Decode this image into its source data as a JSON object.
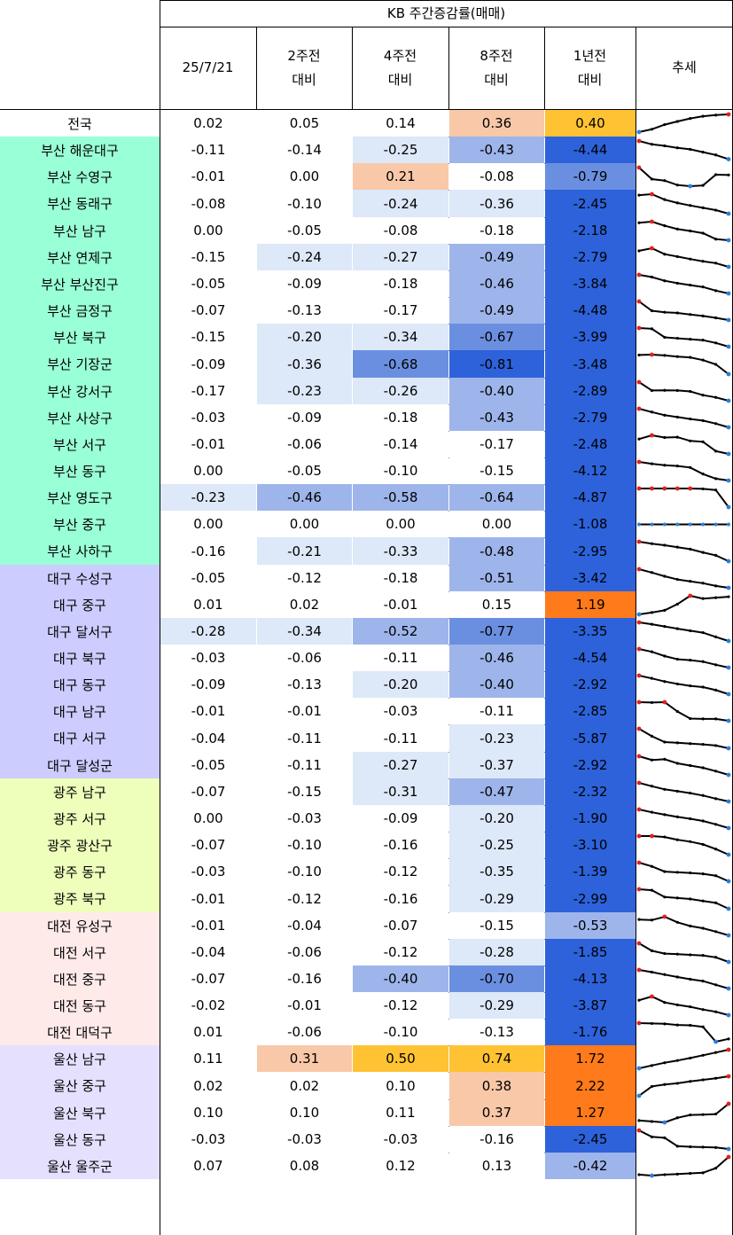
{
  "header": {
    "title": "KB 주간증감률(매매)",
    "col_date": "25/7/21",
    "col_2w": [
      "2주전",
      "대비"
    ],
    "col_4w": [
      "4주전",
      "대비"
    ],
    "col_8w": [
      "8주전",
      "대비"
    ],
    "col_1y": [
      "1년전",
      "대비"
    ],
    "col_trend": "추세"
  },
  "colors": {
    "national": "#ffffff",
    "busan": "#99ffd6",
    "daegu": "#ccccff",
    "gwangju": "#eeffbb",
    "daejeon": "#ffeaea",
    "ulsan": "#e6e0ff",
    "dark_blue": "#2d62da",
    "mid_blue": "#6b8fe0",
    "light_blue": "#9eb5eb",
    "pale_blue": "#dde8f8",
    "peach": "#f8c8a8",
    "gold": "#ffc233",
    "orange": "#ff7a1a",
    "spark_line": "#000000",
    "spark_high": "#e02020",
    "spark_low": "#2c7fd9"
  },
  "rows": [
    {
      "region": "전국",
      "group": "national",
      "values": [
        "0.02",
        "0.05",
        "0.14",
        "0.36",
        "0.40"
      ],
      "fills": [
        "",
        "",
        "",
        "peach",
        "gold"
      ],
      "trend": [
        0.05,
        0.2,
        0.45,
        0.62,
        0.78,
        0.9,
        0.96,
        1
      ]
    },
    {
      "region": "부산 해운대구",
      "group": "busan",
      "values": [
        "-0.11",
        "-0.14",
        "-0.25",
        "-0.43",
        "-4.44"
      ],
      "fills": [
        "",
        "",
        "pale_blue",
        "light_blue",
        "dark_blue"
      ],
      "trend": [
        1,
        0.82,
        0.74,
        0.63,
        0.55,
        0.4,
        0.25,
        0.02
      ]
    },
    {
      "region": "부산 수영구",
      "group": "busan",
      "values": [
        "-0.01",
        "0.00",
        "0.21",
        "-0.08",
        "-0.79"
      ],
      "fills": [
        "",
        "",
        "peach",
        "",
        "mid_blue"
      ],
      "trend": [
        1,
        0.38,
        0.3,
        0.06,
        0,
        0.04,
        0.62,
        0.6
      ]
    },
    {
      "region": "부산 동래구",
      "group": "busan",
      "values": [
        "-0.08",
        "-0.10",
        "-0.24",
        "-0.36",
        "-2.45"
      ],
      "fills": [
        "",
        "",
        "pale_blue",
        "pale_blue",
        "dark_blue"
      ],
      "trend": [
        0.95,
        1,
        0.72,
        0.55,
        0.42,
        0.3,
        0.18,
        0
      ]
    },
    {
      "region": "부산 남구",
      "group": "busan",
      "values": [
        "0.00",
        "-0.05",
        "-0.08",
        "-0.18",
        "-2.18"
      ],
      "fills": [
        "",
        "",
        "",
        "",
        "dark_blue"
      ],
      "trend": [
        0.94,
        1,
        0.78,
        0.6,
        0.5,
        0.38,
        0.06,
        0
      ]
    },
    {
      "region": "부산 연제구",
      "group": "busan",
      "values": [
        "-0.15",
        "-0.24",
        "-0.27",
        "-0.49",
        "-2.79"
      ],
      "fills": [
        "",
        "pale_blue",
        "pale_blue",
        "light_blue",
        "dark_blue"
      ],
      "trend": [
        0.86,
        1,
        0.68,
        0.55,
        0.42,
        0.3,
        0.2,
        0
      ]
    },
    {
      "region": "부산 부산진구",
      "group": "busan",
      "values": [
        "-0.05",
        "-0.09",
        "-0.18",
        "-0.46",
        "-3.84"
      ],
      "fills": [
        "",
        "",
        "",
        "light_blue",
        "dark_blue"
      ],
      "trend": [
        1,
        0.88,
        0.68,
        0.55,
        0.45,
        0.35,
        0.15,
        0
      ]
    },
    {
      "region": "부산 금정구",
      "group": "busan",
      "values": [
        "-0.07",
        "-0.13",
        "-0.17",
        "-0.49",
        "-4.48"
      ],
      "fills": [
        "",
        "",
        "",
        "light_blue",
        "dark_blue"
      ],
      "trend": [
        1,
        0.5,
        0.42,
        0.38,
        0.3,
        0.22,
        0.12,
        0
      ]
    },
    {
      "region": "부산 북구",
      "group": "busan",
      "values": [
        "-0.15",
        "-0.20",
        "-0.34",
        "-0.67",
        "-3.99"
      ],
      "fills": [
        "",
        "pale_blue",
        "pale_blue",
        "mid_blue",
        "dark_blue"
      ],
      "trend": [
        1,
        0.96,
        0.5,
        0.45,
        0.4,
        0.35,
        0.2,
        0
      ]
    },
    {
      "region": "부산 기장군",
      "group": "busan",
      "values": [
        "-0.09",
        "-0.36",
        "-0.68",
        "-0.81",
        "-3.48"
      ],
      "fills": [
        "",
        "pale_blue",
        "mid_blue",
        "dark_blue",
        "dark_blue"
      ],
      "trend": [
        0.98,
        1,
        0.96,
        0.9,
        0.86,
        0.72,
        0.5,
        0
      ]
    },
    {
      "region": "부산 강서구",
      "group": "busan",
      "values": [
        "-0.17",
        "-0.23",
        "-0.26",
        "-0.40",
        "-2.89"
      ],
      "fills": [
        "",
        "pale_blue",
        "pale_blue",
        "light_blue",
        "dark_blue"
      ],
      "trend": [
        1,
        0.55,
        0.56,
        0.55,
        0.5,
        0.3,
        0.18,
        0
      ]
    },
    {
      "region": "부산 사상구",
      "group": "busan",
      "values": [
        "-0.03",
        "-0.09",
        "-0.18",
        "-0.43",
        "-2.79"
      ],
      "fills": [
        "",
        "",
        "",
        "light_blue",
        "dark_blue"
      ],
      "trend": [
        1,
        0.82,
        0.65,
        0.55,
        0.45,
        0.36,
        0.2,
        0
      ]
    },
    {
      "region": "부산 서구",
      "group": "busan",
      "values": [
        "-0.01",
        "-0.06",
        "-0.14",
        "-0.17",
        "-2.48"
      ],
      "fills": [
        "",
        "",
        "",
        "",
        "dark_blue"
      ],
      "trend": [
        0.8,
        1,
        0.88,
        0.9,
        0.7,
        0.65,
        0.15,
        0
      ]
    },
    {
      "region": "부산 동구",
      "group": "busan",
      "values": [
        "0.00",
        "-0.05",
        "-0.10",
        "-0.15",
        "-4.12"
      ],
      "fills": [
        "",
        "",
        "",
        "",
        "dark_blue"
      ],
      "trend": [
        1,
        0.9,
        0.82,
        0.78,
        0.7,
        0.35,
        0.1,
        0
      ]
    },
    {
      "region": "부산 영도구",
      "group": "busan",
      "values": [
        "-0.23",
        "-0.46",
        "-0.58",
        "-0.64",
        "-4.87"
      ],
      "fills": [
        "pale_blue",
        "light_blue",
        "light_blue",
        "light_blue",
        "dark_blue"
      ],
      "trend": [
        1,
        1,
        1,
        1,
        1,
        0.98,
        0.92,
        0
      ]
    },
    {
      "region": "부산 중구",
      "group": "busan",
      "values": [
        "0.00",
        "0.00",
        "0.00",
        "0.00",
        "-1.08"
      ],
      "fills": [
        "",
        "",
        "",
        "",
        "dark_blue"
      ],
      "trend": [
        0.5,
        0.5,
        0.5,
        0.5,
        0.5,
        0.5,
        0.5,
        0.5
      ]
    },
    {
      "region": "부산 사하구",
      "group": "busan",
      "values": [
        "-0.16",
        "-0.21",
        "-0.33",
        "-0.48",
        "-2.95"
      ],
      "fills": [
        "",
        "pale_blue",
        "pale_blue",
        "light_blue",
        "dark_blue"
      ],
      "trend": [
        1,
        0.9,
        0.82,
        0.72,
        0.62,
        0.45,
        0.3,
        0
      ]
    },
    {
      "region": "대구 수성구",
      "group": "daegu",
      "values": [
        "-0.05",
        "-0.12",
        "-0.18",
        "-0.51",
        "-3.42"
      ],
      "fills": [
        "",
        "",
        "",
        "light_blue",
        "dark_blue"
      ],
      "trend": [
        1,
        0.82,
        0.62,
        0.45,
        0.35,
        0.25,
        0.1,
        0
      ]
    },
    {
      "region": "대구 중구",
      "group": "daegu",
      "values": [
        "0.01",
        "0.02",
        "-0.01",
        "0.15",
        "1.19"
      ],
      "fills": [
        "",
        "",
        "",
        "",
        "orange"
      ],
      "trend": [
        0,
        0.1,
        0.22,
        0.55,
        1,
        0.85,
        0.9,
        0.95
      ]
    },
    {
      "region": "대구 달서구",
      "group": "daegu",
      "values": [
        "-0.28",
        "-0.34",
        "-0.52",
        "-0.77",
        "-3.35"
      ],
      "fills": [
        "pale_blue",
        "pale_blue",
        "light_blue",
        "mid_blue",
        "dark_blue"
      ],
      "trend": [
        1,
        0.9,
        0.78,
        0.66,
        0.55,
        0.45,
        0.22,
        0
      ]
    },
    {
      "region": "대구 북구",
      "group": "daegu",
      "values": [
        "-0.03",
        "-0.06",
        "-0.11",
        "-0.46",
        "-4.54"
      ],
      "fills": [
        "",
        "",
        "",
        "light_blue",
        "dark_blue"
      ],
      "trend": [
        1,
        0.85,
        0.62,
        0.45,
        0.4,
        0.32,
        0.15,
        0
      ]
    },
    {
      "region": "대구 동구",
      "group": "daegu",
      "values": [
        "-0.09",
        "-0.13",
        "-0.20",
        "-0.40",
        "-2.92"
      ],
      "fills": [
        "",
        "",
        "pale_blue",
        "light_blue",
        "dark_blue"
      ],
      "trend": [
        1,
        0.85,
        0.68,
        0.55,
        0.45,
        0.38,
        0.22,
        0
      ]
    },
    {
      "region": "대구 남구",
      "group": "daegu",
      "values": [
        "-0.01",
        "-0.01",
        "-0.03",
        "-0.11",
        "-2.85"
      ],
      "fills": [
        "",
        "",
        "",
        "",
        "dark_blue"
      ],
      "trend": [
        1,
        0.98,
        1,
        0.5,
        0.12,
        0.1,
        0.1,
        0
      ]
    },
    {
      "region": "대구 서구",
      "group": "daegu",
      "values": [
        "-0.04",
        "-0.11",
        "-0.11",
        "-0.23",
        "-5.87"
      ],
      "fills": [
        "",
        "",
        "",
        "pale_blue",
        "dark_blue"
      ],
      "trend": [
        1,
        0.62,
        0.32,
        0.28,
        0.24,
        0.2,
        0.14,
        0
      ]
    },
    {
      "region": "대구 달성군",
      "group": "daegu",
      "values": [
        "-0.05",
        "-0.11",
        "-0.27",
        "-0.37",
        "-2.92"
      ],
      "fills": [
        "",
        "",
        "pale_blue",
        "pale_blue",
        "dark_blue"
      ],
      "trend": [
        1,
        0.8,
        0.84,
        0.62,
        0.5,
        0.38,
        0.2,
        0
      ]
    },
    {
      "region": "광주 남구",
      "group": "gwangju",
      "values": [
        "-0.07",
        "-0.15",
        "-0.31",
        "-0.47",
        "-2.32"
      ],
      "fills": [
        "",
        "",
        "pale_blue",
        "light_blue",
        "dark_blue"
      ],
      "trend": [
        1,
        0.82,
        0.65,
        0.55,
        0.45,
        0.32,
        0.15,
        0
      ]
    },
    {
      "region": "광주 서구",
      "group": "gwangju",
      "values": [
        "0.00",
        "-0.03",
        "-0.09",
        "-0.20",
        "-1.90"
      ],
      "fills": [
        "",
        "",
        "",
        "pale_blue",
        "dark_blue"
      ],
      "trend": [
        1,
        0.85,
        0.72,
        0.6,
        0.5,
        0.38,
        0.2,
        0
      ]
    },
    {
      "region": "광주 광산구",
      "group": "gwangju",
      "values": [
        "-0.07",
        "-0.10",
        "-0.16",
        "-0.25",
        "-3.10"
      ],
      "fills": [
        "",
        "",
        "",
        "pale_blue",
        "dark_blue"
      ],
      "trend": [
        1,
        1,
        0.95,
        0.8,
        0.7,
        0.55,
        0.3,
        0
      ]
    },
    {
      "region": "광주 동구",
      "group": "gwangju",
      "values": [
        "-0.03",
        "-0.10",
        "-0.12",
        "-0.35",
        "-1.39"
      ],
      "fills": [
        "",
        "",
        "",
        "pale_blue",
        "dark_blue"
      ],
      "trend": [
        1,
        0.8,
        0.52,
        0.48,
        0.45,
        0.4,
        0.3,
        0
      ]
    },
    {
      "region": "광주 북구",
      "group": "gwangju",
      "values": [
        "-0.01",
        "-0.12",
        "-0.16",
        "-0.29",
        "-2.99"
      ],
      "fills": [
        "",
        "",
        "",
        "pale_blue",
        "dark_blue"
      ],
      "trend": [
        1,
        0.95,
        0.6,
        0.55,
        0.5,
        0.4,
        0.3,
        0
      ]
    },
    {
      "region": "대전 유성구",
      "group": "daejeon",
      "values": [
        "-0.01",
        "-0.04",
        "-0.07",
        "-0.15",
        "-0.53"
      ],
      "fills": [
        "",
        "",
        "",
        "",
        "light_blue"
      ],
      "trend": [
        0.85,
        0.82,
        1,
        0.7,
        0.5,
        0.38,
        0.2,
        0
      ]
    },
    {
      "region": "대전 서구",
      "group": "daejeon",
      "values": [
        "-0.04",
        "-0.06",
        "-0.12",
        "-0.28",
        "-1.85"
      ],
      "fills": [
        "",
        "",
        "",
        "pale_blue",
        "dark_blue"
      ],
      "trend": [
        1,
        0.6,
        0.45,
        0.42,
        0.38,
        0.35,
        0.25,
        0
      ]
    },
    {
      "region": "대전 중구",
      "group": "daejeon",
      "values": [
        "-0.07",
        "-0.16",
        "-0.40",
        "-0.70",
        "-4.13"
      ],
      "fills": [
        "",
        "",
        "light_blue",
        "mid_blue",
        "dark_blue"
      ],
      "trend": [
        1,
        0.88,
        0.75,
        0.62,
        0.5,
        0.4,
        0.2,
        0
      ]
    },
    {
      "region": "대전 동구",
      "group": "daejeon",
      "values": [
        "-0.02",
        "-0.01",
        "-0.12",
        "-0.29",
        "-3.87"
      ],
      "fills": [
        "",
        "",
        "",
        "pale_blue",
        "dark_blue"
      ],
      "trend": [
        0.8,
        1,
        0.68,
        0.55,
        0.45,
        0.3,
        0.18,
        0
      ]
    },
    {
      "region": "대전 대덕구",
      "group": "daejeon",
      "values": [
        "0.01",
        "-0.06",
        "-0.10",
        "-0.13",
        "-1.76"
      ],
      "fills": [
        "",
        "",
        "",
        "",
        "dark_blue"
      ],
      "trend": [
        1,
        0.98,
        0.96,
        0.9,
        0.88,
        0.8,
        0,
        0.15
      ]
    },
    {
      "region": "울산 남구",
      "group": "ulsan",
      "values": [
        "0.11",
        "0.31",
        "0.50",
        "0.74",
        "1.72"
      ],
      "fills": [
        "",
        "peach",
        "gold",
        "gold",
        "orange"
      ],
      "trend": [
        0,
        0.15,
        0.3,
        0.42,
        0.55,
        0.7,
        0.85,
        1
      ]
    },
    {
      "region": "울산 중구",
      "group": "ulsan",
      "values": [
        "0.02",
        "0.02",
        "0.10",
        "0.38",
        "2.22"
      ],
      "fills": [
        "",
        "",
        "",
        "peach",
        "orange"
      ],
      "trend": [
        0,
        0.48,
        0.58,
        0.64,
        0.74,
        0.82,
        0.9,
        1
      ]
    },
    {
      "region": "울산 북구",
      "group": "ulsan",
      "values": [
        "0.10",
        "0.10",
        "0.11",
        "0.37",
        "1.27"
      ],
      "fills": [
        "",
        "",
        "",
        "peach",
        "orange"
      ],
      "trend": [
        0.1,
        0.05,
        0,
        0.25,
        0.4,
        0.42,
        0.45,
        1
      ]
    },
    {
      "region": "울산 동구",
      "group": "ulsan",
      "values": [
        "-0.03",
        "-0.03",
        "-0.03",
        "-0.16",
        "-2.45"
      ],
      "fills": [
        "",
        "",
        "",
        "",
        "dark_blue"
      ],
      "trend": [
        1,
        0.65,
        0.6,
        0.15,
        0.12,
        0.1,
        0.08,
        0
      ]
    },
    {
      "region": "울산 울주군",
      "group": "ulsan",
      "values": [
        "0.07",
        "0.08",
        "0.12",
        "0.13",
        "-0.42"
      ],
      "fills": [
        "",
        "",
        "",
        "",
        "light_blue"
      ],
      "trend": [
        0.05,
        0,
        0.05,
        0.08,
        0.12,
        0.15,
        0.4,
        1
      ]
    }
  ]
}
